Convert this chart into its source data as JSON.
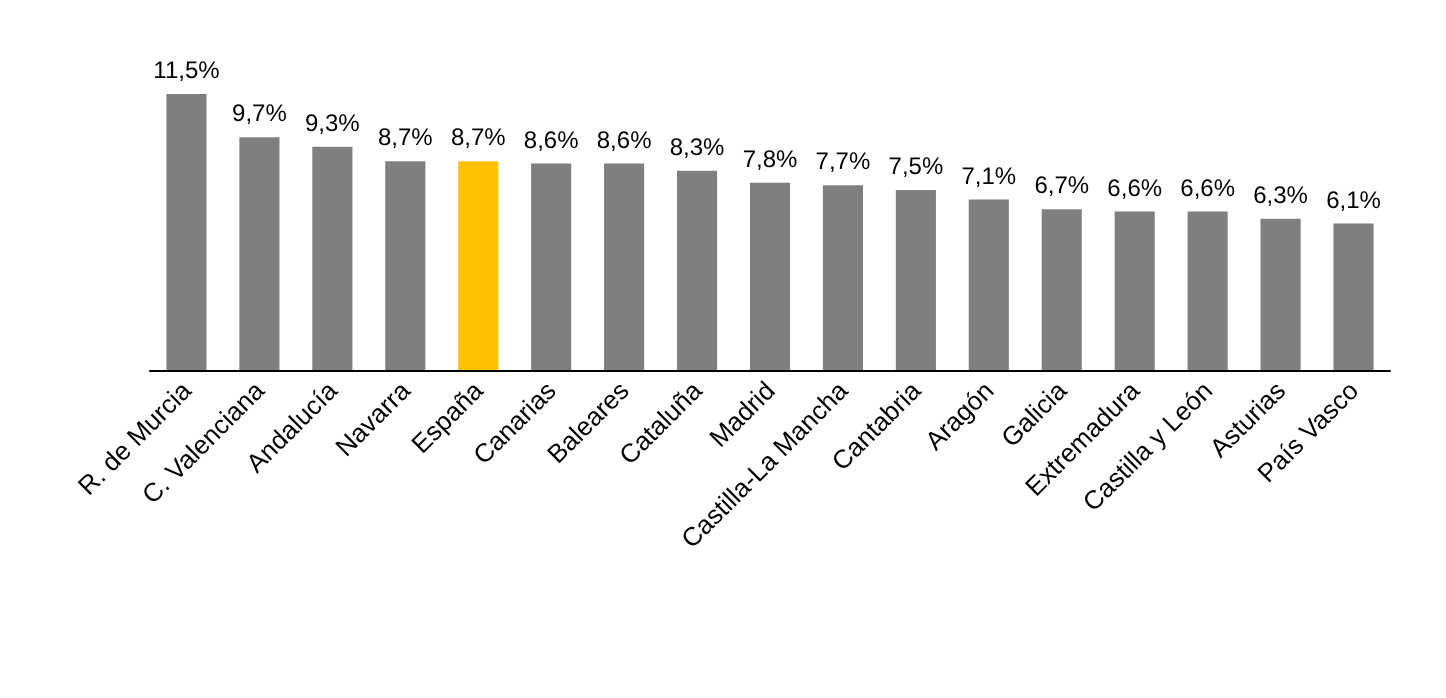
{
  "chart_data": {
    "type": "bar",
    "categories": [
      "R. de Murcia",
      "C. Valenciana",
      "Andalucía",
      "Navarra",
      "España",
      "Canarias",
      "Baleares",
      "Cataluña",
      "Madrid",
      "Castilla-La Mancha",
      "Cantabria",
      "Aragón",
      "Galicia",
      "Extremadura",
      "Castilla y León",
      "Asturias",
      "País Vasco"
    ],
    "values": [
      11.5,
      9.7,
      9.3,
      8.7,
      8.7,
      8.6,
      8.6,
      8.3,
      7.8,
      7.7,
      7.5,
      7.1,
      6.7,
      6.6,
      6.6,
      6.3,
      6.1
    ],
    "value_labels": [
      "11,5%",
      "9,7%",
      "9,3%",
      "8,7%",
      "8,7%",
      "8,6%",
      "8,6%",
      "8,3%",
      "7,8%",
      "7,7%",
      "7,5%",
      "7,1%",
      "6,7%",
      "6,6%",
      "6,6%",
      "6,3%",
      "6,1%"
    ],
    "colors": [
      "#7f7f7f",
      "#7f7f7f",
      "#7f7f7f",
      "#7f7f7f",
      "#ffc000",
      "#7f7f7f",
      "#7f7f7f",
      "#7f7f7f",
      "#7f7f7f",
      "#7f7f7f",
      "#7f7f7f",
      "#7f7f7f",
      "#7f7f7f",
      "#7f7f7f",
      "#7f7f7f",
      "#7f7f7f",
      "#7f7f7f"
    ]
  }
}
